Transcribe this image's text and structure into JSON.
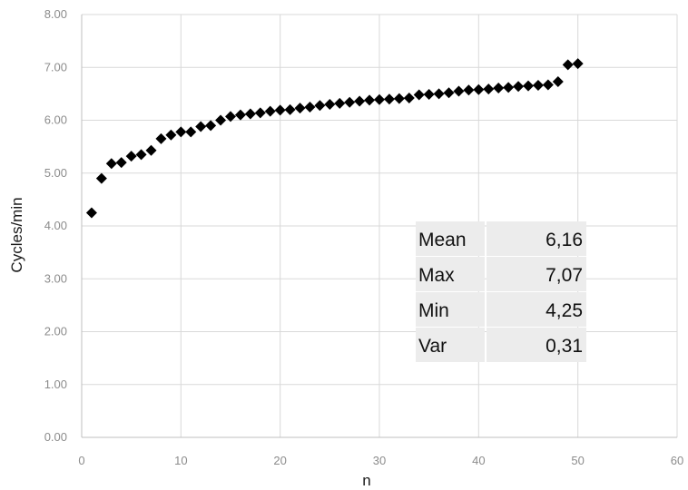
{
  "chart_data": {
    "type": "scatter",
    "title": "",
    "xlabel": "n",
    "ylabel": "Cycles/min",
    "xlim": [
      0,
      60
    ],
    "ylim": [
      0,
      8
    ],
    "xticks": [
      0,
      10,
      20,
      30,
      40,
      50,
      60
    ],
    "yticks": [
      "0.00",
      "1.00",
      "2.00",
      "3.00",
      "4.00",
      "5.00",
      "6.00",
      "7.00",
      "8.00"
    ],
    "grid": true,
    "legend": "none",
    "marker": "diamond",
    "marker_color": "#000000",
    "series": [
      {
        "x": [
          1,
          2,
          3,
          4,
          5,
          6,
          7,
          8,
          9,
          10,
          11,
          12,
          13,
          14,
          15,
          16,
          17,
          18,
          19,
          20,
          21,
          22,
          23,
          24,
          25,
          26,
          27,
          28,
          29,
          30,
          31,
          32,
          33,
          34,
          35,
          36,
          37,
          38,
          39,
          40,
          41,
          42,
          43,
          44,
          45,
          46,
          47,
          48,
          49,
          50
        ],
        "y": [
          4.25,
          4.9,
          5.18,
          5.2,
          5.32,
          5.35,
          5.43,
          5.65,
          5.72,
          5.78,
          5.78,
          5.88,
          5.9,
          6.0,
          6.07,
          6.1,
          6.12,
          6.14,
          6.17,
          6.19,
          6.2,
          6.23,
          6.25,
          6.28,
          6.3,
          6.32,
          6.34,
          6.36,
          6.38,
          6.39,
          6.4,
          6.41,
          6.42,
          6.48,
          6.49,
          6.5,
          6.52,
          6.55,
          6.57,
          6.58,
          6.59,
          6.61,
          6.62,
          6.64,
          6.65,
          6.66,
          6.67,
          6.73,
          7.05,
          7.07
        ]
      }
    ],
    "stats_table": [
      {
        "label": "Mean",
        "value": "6,16"
      },
      {
        "label": "Max",
        "value": "7,07"
      },
      {
        "label": "Min",
        "value": "4,25"
      },
      {
        "label": "Var",
        "value": "0,31"
      }
    ]
  }
}
